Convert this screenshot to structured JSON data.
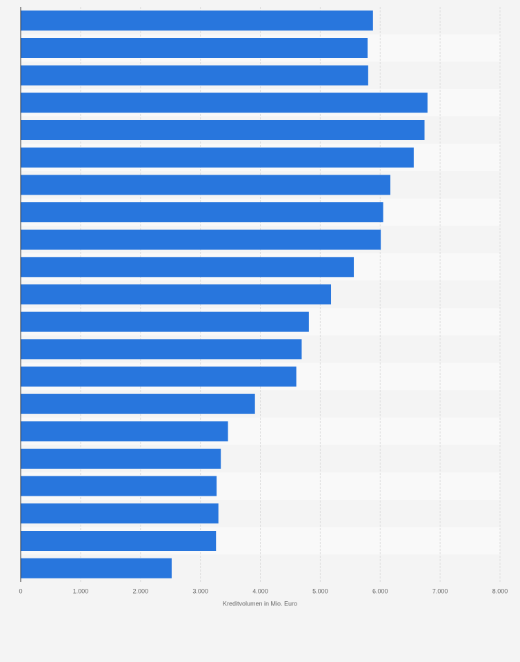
{
  "chart_data": {
    "type": "bar",
    "orientation": "horizontal",
    "x_label": "Kreditvolumen in Mio. Euro",
    "categories": [
      null,
      null,
      null,
      null,
      null,
      null,
      null,
      null,
      null,
      null,
      null,
      null,
      null,
      null,
      null,
      null,
      null,
      null,
      null,
      null,
      null
    ],
    "values": [
      5880,
      5790,
      5800,
      6790,
      6740,
      6560,
      6170,
      6050,
      6010,
      5560,
      5180,
      4810,
      4690,
      4600,
      3910,
      3460,
      3340,
      3270,
      3300,
      3260,
      2520
    ],
    "color": "#2876dd",
    "xlim": [
      0,
      8000
    ],
    "xticks": [
      0,
      {
        "value": 1000,
        "label": "1.000"
      },
      {
        "value": 2000,
        "label": "2.000"
      },
      {
        "value": 3000,
        "label": "3.000"
      },
      {
        "value": 4000,
        "label": "4.000"
      },
      {
        "value": 5000,
        "label": "5.000"
      },
      {
        "value": 6000,
        "label": "6.000"
      },
      {
        "value": 7000,
        "label": "7.000"
      },
      {
        "value": 8000,
        "label": "8.000"
      }
    ],
    "grid": true
  }
}
